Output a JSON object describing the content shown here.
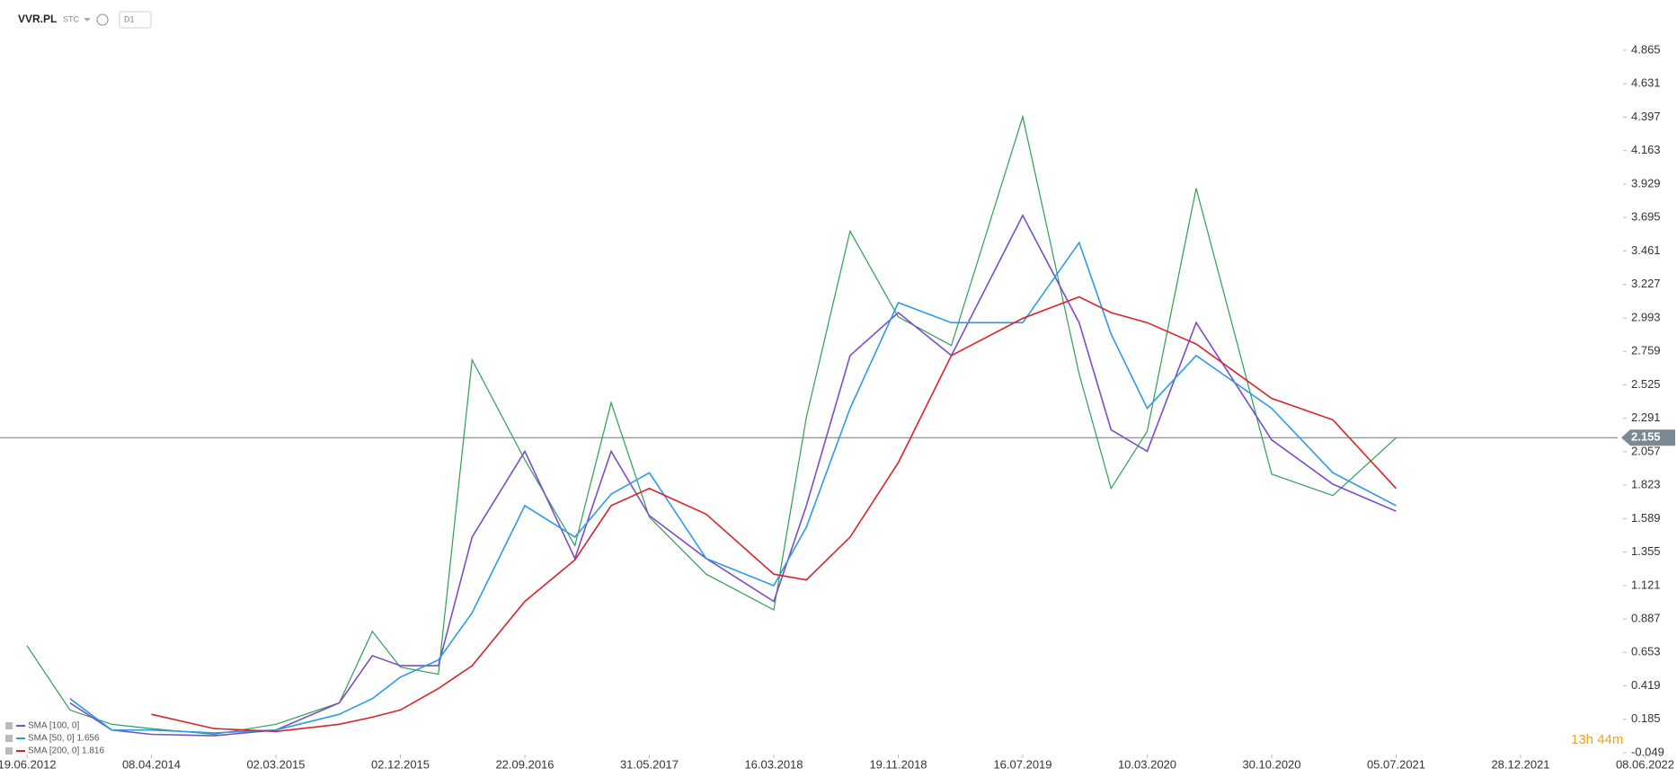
{
  "header": {
    "symbol": "VVR.PL",
    "market": "STC",
    "timeframe": "D1"
  },
  "timer": "13h 44m",
  "chart_data": {
    "type": "line",
    "x": [
      "19.06.2012",
      "01.02.2013",
      "10.09.2013",
      "08.04.2014",
      "20.09.2014",
      "02.03.2015",
      "20.07.2015",
      "01.10.2015",
      "02.12.2015",
      "01.03.2016",
      "20.05.2016",
      "22.09.2016",
      "01.01.2017",
      "15.03.2017",
      "31.05.2017",
      "10.10.2017",
      "16.03.2018",
      "20.05.2018",
      "15.08.2018",
      "19.11.2018",
      "01.03.2019",
      "16.07.2019",
      "01.11.2019",
      "01.01.2020",
      "10.03.2020",
      "10.06.2020",
      "30.10.2020",
      "01.03.2021",
      "05.07.2021"
    ],
    "values": [
      0.7,
      0.25,
      0.15,
      0.12,
      0.08,
      0.15,
      0.3,
      0.8,
      0.55,
      0.5,
      2.7,
      2.0,
      1.4,
      2.4,
      1.6,
      1.2,
      0.95,
      2.3,
      3.6,
      3.0,
      2.8,
      4.4,
      2.6,
      1.8,
      2.2,
      3.9,
      1.9,
      1.75,
      2.155
    ],
    "color": "#2e9e55",
    "series": [
      {
        "name": "SMA [100, 0]",
        "color": "#7b4cc8",
        "values": [
          null,
          0.3,
          0.11,
          0.08,
          0.07,
          0.11,
          0.3,
          0.63,
          0.56,
          0.56,
          1.46,
          2.06,
          1.31,
          2.06,
          1.61,
          1.31,
          1.01,
          1.68,
          2.73,
          3.03,
          2.73,
          3.71,
          2.96,
          2.21,
          2.06,
          2.96,
          2.14,
          1.83,
          1.64
        ]
      },
      {
        "name": "SMA [50, 0] 1.656",
        "color": "#2b9be8",
        "values": [
          null,
          0.33,
          0.11,
          0.11,
          0.09,
          0.11,
          0.22,
          0.33,
          0.48,
          0.6,
          0.93,
          1.68,
          1.46,
          1.76,
          1.91,
          1.31,
          1.12,
          1.53,
          2.36,
          3.1,
          2.96,
          2.96,
          3.52,
          2.88,
          2.36,
          2.73,
          2.36,
          1.91,
          1.68
        ]
      },
      {
        "name": "SMA [200, 0] 1.816",
        "color": "#d8232a",
        "values": [
          null,
          null,
          null,
          0.22,
          0.12,
          0.1,
          0.15,
          0.2,
          0.25,
          0.4,
          0.56,
          1.01,
          1.3,
          1.68,
          1.8,
          1.62,
          1.2,
          1.16,
          1.46,
          1.98,
          2.73,
          2.99,
          3.14,
          3.03,
          2.96,
          2.81,
          2.43,
          2.28,
          1.8
        ]
      }
    ],
    "current_price": 2.155,
    "xticks": [
      "19.06.2012",
      "08.04.2014",
      "02.03.2015",
      "02.12.2015",
      "22.09.2016",
      "31.05.2017",
      "16.03.2018",
      "19.11.2018",
      "16.07.2019",
      "10.03.2020",
      "30.10.2020",
      "05.07.2021",
      "28.12.2021",
      "08.06.2022"
    ],
    "ylim": [
      -0.049,
      5.217
    ],
    "yticks": [
      -0.049,
      0.185,
      0.419,
      0.653,
      0.887,
      1.121,
      1.355,
      1.589,
      1.823,
      2.057,
      2.291,
      2.525,
      2.759,
      2.993,
      3.227,
      3.461,
      3.695,
      3.929,
      4.163,
      4.397,
      4.631,
      4.865
    ],
    "grid": false
  }
}
